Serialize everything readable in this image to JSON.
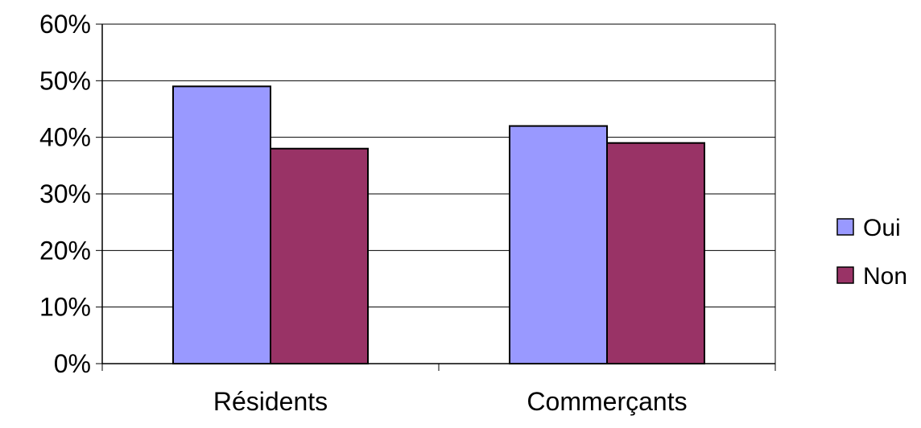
{
  "chart_data": {
    "type": "bar",
    "categories": [
      "Résidents",
      "Commerçants"
    ],
    "series": [
      {
        "name": "Oui",
        "values": [
          49,
          42
        ],
        "color": "#9999ff"
      },
      {
        "name": "Non",
        "values": [
          38,
          39
        ],
        "color": "#993366"
      }
    ],
    "ylim": [
      0,
      60
    ],
    "yticks": [
      0,
      10,
      20,
      30,
      40,
      50,
      60
    ],
    "ytick_labels": [
      "0%",
      "10%",
      "20%",
      "30%",
      "40%",
      "50%",
      "60%"
    ],
    "grid": true,
    "legend_position": "right"
  }
}
